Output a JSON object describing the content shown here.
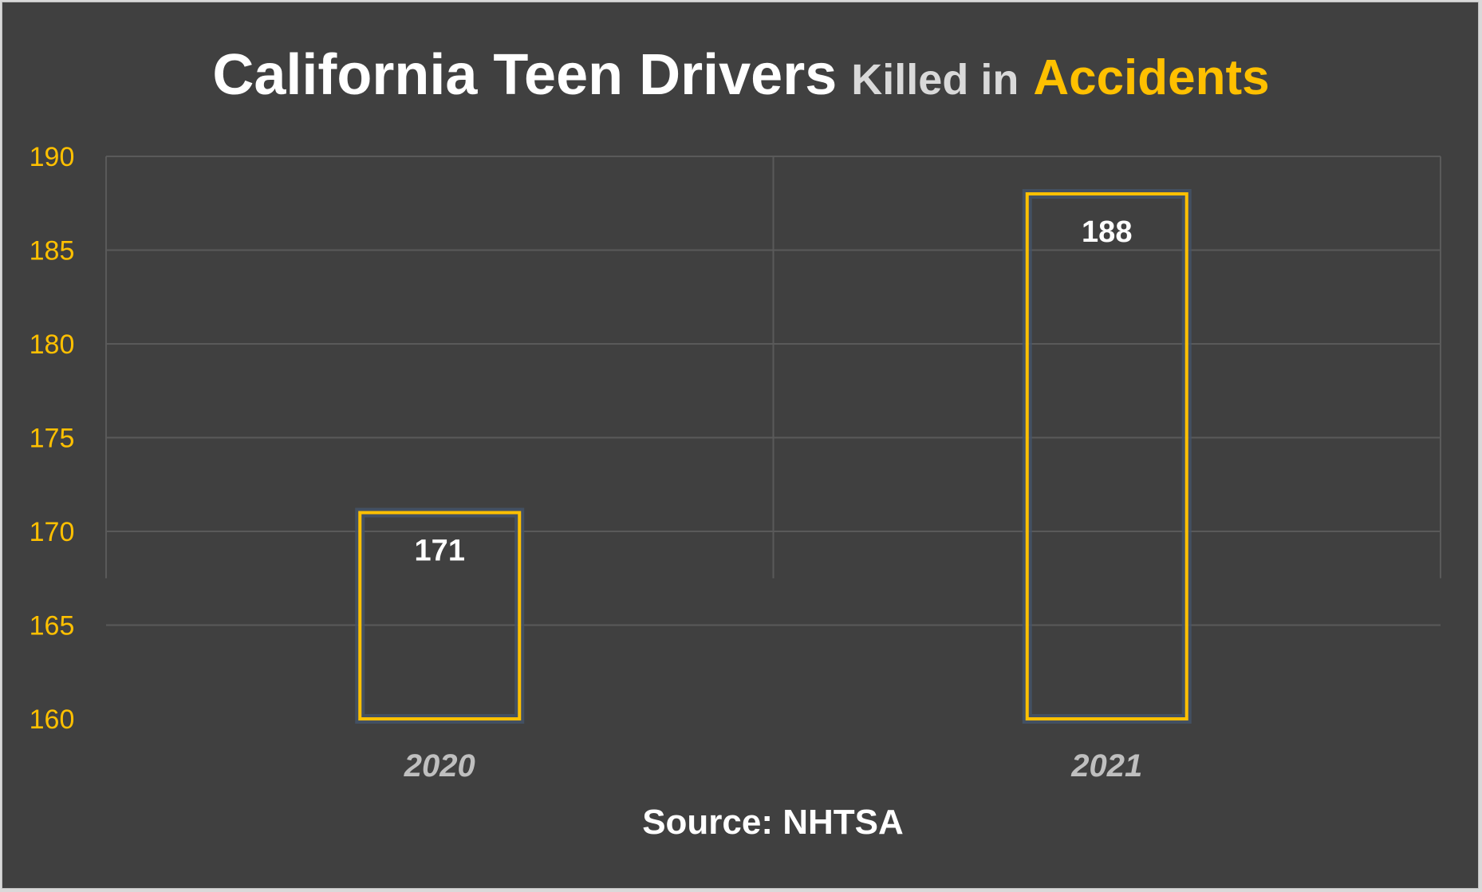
{
  "chart_data": {
    "type": "bar",
    "title": {
      "part1": "California Teen Drivers",
      "part2": "Killed in",
      "part3": "Accidents"
    },
    "categories": [
      "2020",
      "2021"
    ],
    "values": [
      171,
      188
    ],
    "ylim": [
      160,
      190
    ],
    "yticks": [
      160,
      165,
      170,
      175,
      180,
      185,
      190
    ],
    "xlabel": "",
    "ylabel": "",
    "source": "Source:  NHTSA",
    "colors": {
      "background": "#404040",
      "accent": "#ffc000",
      "title": "#ffffff",
      "subtitle": "#d9d9d9",
      "glow": "#44546a"
    }
  }
}
